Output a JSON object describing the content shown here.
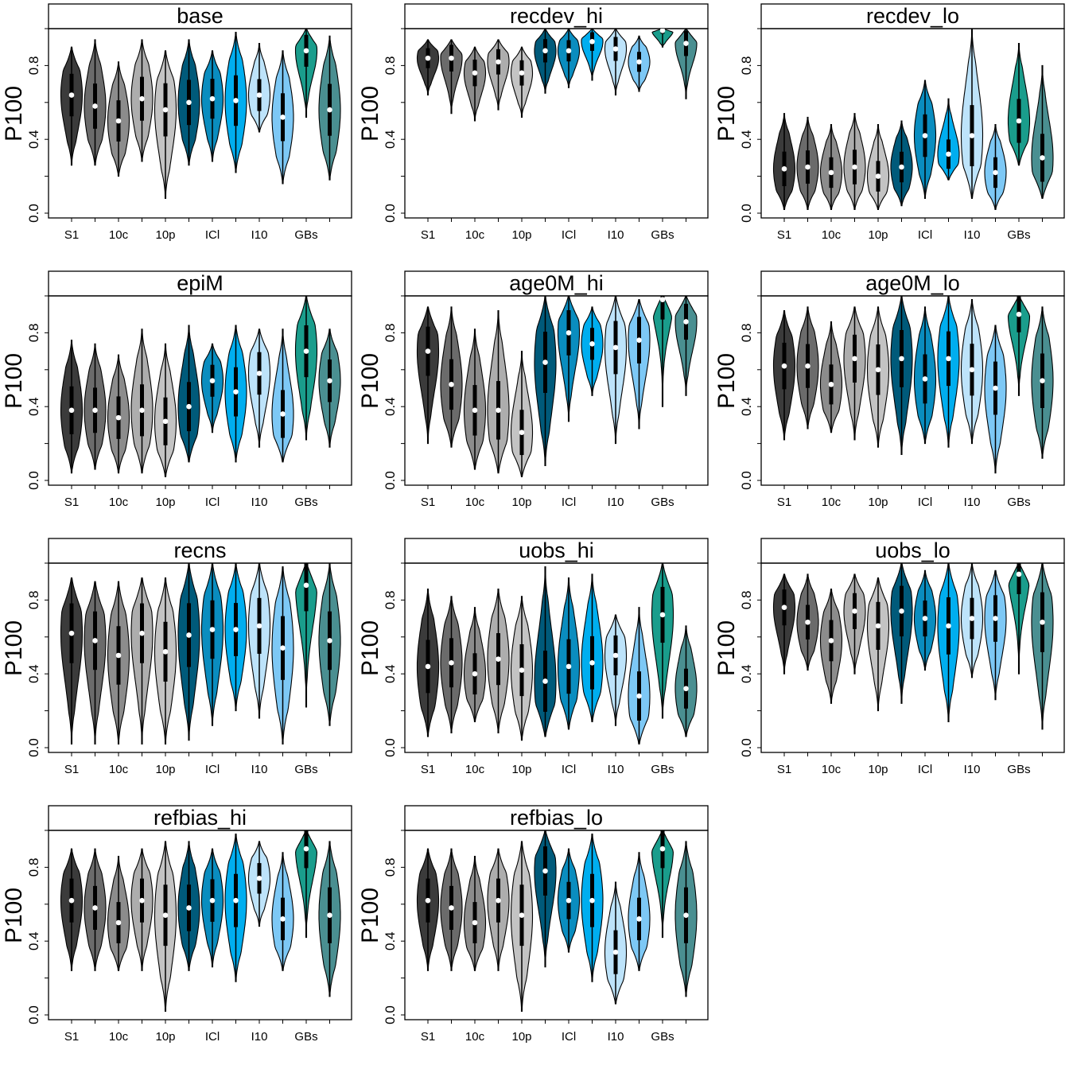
{
  "chart_data": {
    "type": "violin",
    "ylabel": "P100",
    "ylim": [
      0,
      1
    ],
    "yticks": [
      "0.0",
      "0.4",
      "0.8"
    ],
    "x_tick_labels": [
      "S1",
      "10c",
      "10p",
      "ICl",
      "I10",
      "GBs"
    ],
    "groups": [
      {
        "color": "#3b3b3b"
      },
      {
        "color": "#6b6b6b"
      },
      {
        "color": "#8c8c8c"
      },
      {
        "color": "#adadad"
      },
      {
        "color": "#c3c3c3"
      },
      {
        "color": "#005a7a"
      },
      {
        "color": "#0a8dbf"
      },
      {
        "color": "#00aeef"
      },
      {
        "color": "#bde3fa"
      },
      {
        "color": "#7dc8f5"
      },
      {
        "color": "#1a9d8c"
      },
      {
        "color": "#4a8f91"
      }
    ],
    "panels": [
      {
        "title": "base",
        "min": [
          0.26,
          0.26,
          0.2,
          0.28,
          0.08,
          0.26,
          0.28,
          0.22,
          0.44,
          0.16,
          0.52,
          0.18
        ],
        "max": [
          0.9,
          0.94,
          0.82,
          0.94,
          0.88,
          0.94,
          0.88,
          0.98,
          0.92,
          0.88,
          1.0,
          0.96
        ],
        "median": [
          0.64,
          0.58,
          0.5,
          0.62,
          0.56,
          0.6,
          0.62,
          0.61,
          0.64,
          0.52,
          0.88,
          0.56
        ]
      },
      {
        "title": "recdev_hi",
        "min": [
          0.64,
          0.54,
          0.5,
          0.56,
          0.52,
          0.65,
          0.68,
          0.72,
          0.64,
          0.66,
          0.9,
          0.62
        ],
        "max": [
          0.94,
          0.94,
          0.9,
          0.94,
          0.9,
          1.0,
          1.0,
          1.0,
          1.0,
          0.96,
          1.0,
          1.0
        ],
        "median": [
          0.84,
          0.84,
          0.76,
          0.82,
          0.76,
          0.88,
          0.88,
          0.93,
          0.89,
          0.82,
          0.99,
          0.92
        ]
      },
      {
        "title": "recdev_lo",
        "min": [
          0.02,
          0.02,
          0.02,
          0.02,
          0.02,
          0.04,
          0.08,
          0.18,
          0.08,
          0.02,
          0.26,
          0.08
        ],
        "max": [
          0.54,
          0.52,
          0.48,
          0.54,
          0.48,
          0.5,
          0.72,
          0.62,
          1.0,
          0.48,
          0.92,
          0.8
        ],
        "median": [
          0.24,
          0.25,
          0.22,
          0.25,
          0.2,
          0.25,
          0.42,
          0.32,
          0.42,
          0.22,
          0.5,
          0.3
        ]
      },
      {
        "title": "epiM",
        "min": [
          0.04,
          0.06,
          0.04,
          0.04,
          0.02,
          0.1,
          0.26,
          0.1,
          0.18,
          0.1,
          0.22,
          0.18
        ],
        "max": [
          0.76,
          0.74,
          0.68,
          0.82,
          0.74,
          0.84,
          0.74,
          0.84,
          0.82,
          0.82,
          1.0,
          0.82
        ],
        "median": [
          0.38,
          0.38,
          0.34,
          0.38,
          0.32,
          0.4,
          0.54,
          0.48,
          0.58,
          0.36,
          0.7,
          0.54
        ]
      },
      {
        "title": "age0M_hi",
        "min": [
          0.2,
          0.18,
          0.06,
          0.04,
          0.02,
          0.08,
          0.32,
          0.46,
          0.2,
          0.28,
          0.4,
          0.46
        ],
        "max": [
          0.94,
          0.94,
          0.82,
          0.92,
          0.7,
          1.0,
          1.0,
          0.94,
          1.0,
          0.98,
          1.0,
          1.0
        ],
        "median": [
          0.7,
          0.52,
          0.38,
          0.38,
          0.26,
          0.64,
          0.8,
          0.74,
          0.72,
          0.76,
          0.98,
          0.86
        ]
      },
      {
        "title": "age0M_lo",
        "min": [
          0.22,
          0.28,
          0.26,
          0.22,
          0.18,
          0.14,
          0.2,
          0.18,
          0.2,
          0.04,
          0.46,
          0.12
        ],
        "max": [
          0.92,
          0.94,
          0.86,
          0.94,
          0.94,
          1.0,
          0.94,
          1.0,
          0.98,
          0.84,
          1.0,
          0.94
        ],
        "median": [
          0.62,
          0.62,
          0.52,
          0.66,
          0.6,
          0.66,
          0.55,
          0.66,
          0.6,
          0.5,
          0.9,
          0.54
        ]
      },
      {
        "title": "recns",
        "min": [
          0.02,
          0.02,
          0.02,
          0.02,
          0.02,
          0.04,
          0.12,
          0.2,
          0.16,
          0.02,
          0.22,
          0.12
        ],
        "max": [
          0.92,
          0.9,
          0.9,
          0.92,
          0.92,
          1.0,
          1.0,
          1.0,
          1.0,
          0.98,
          1.0,
          1.0
        ],
        "median": [
          0.62,
          0.58,
          0.5,
          0.62,
          0.52,
          0.61,
          0.64,
          0.64,
          0.66,
          0.54,
          0.88,
          0.58
        ]
      },
      {
        "title": "uobs_hi",
        "min": [
          0.06,
          0.08,
          0.14,
          0.08,
          0.04,
          0.06,
          0.1,
          0.14,
          0.12,
          0.02,
          0.16,
          0.06
        ],
        "max": [
          0.86,
          0.82,
          0.76,
          0.86,
          0.82,
          0.98,
          0.92,
          0.94,
          0.72,
          0.76,
          1.0,
          0.66
        ],
        "median": [
          0.44,
          0.46,
          0.4,
          0.48,
          0.42,
          0.36,
          0.44,
          0.46,
          0.5,
          0.28,
          0.72,
          0.32
        ]
      },
      {
        "title": "uobs_lo",
        "min": [
          0.4,
          0.42,
          0.24,
          0.4,
          0.2,
          0.24,
          0.42,
          0.14,
          0.38,
          0.26,
          0.4,
          0.1
        ],
        "max": [
          0.94,
          0.94,
          0.86,
          0.94,
          0.92,
          1.0,
          0.96,
          1.0,
          1.0,
          0.96,
          1.0,
          1.0
        ],
        "median": [
          0.76,
          0.68,
          0.58,
          0.74,
          0.66,
          0.74,
          0.7,
          0.66,
          0.7,
          0.7,
          0.94,
          0.68
        ]
      },
      {
        "title": "refbias_hi",
        "min": [
          0.24,
          0.24,
          0.24,
          0.24,
          0.02,
          0.24,
          0.26,
          0.18,
          0.48,
          0.24,
          0.42,
          0.1
        ],
        "max": [
          0.9,
          0.9,
          0.86,
          0.9,
          0.94,
          0.94,
          0.9,
          0.98,
          0.94,
          0.88,
          1.0,
          0.94
        ],
        "median": [
          0.62,
          0.58,
          0.5,
          0.62,
          0.54,
          0.58,
          0.62,
          0.62,
          0.74,
          0.52,
          0.9,
          0.54
        ]
      },
      {
        "title": "refbias_lo",
        "min": [
          0.24,
          0.24,
          0.24,
          0.24,
          0.02,
          0.26,
          0.34,
          0.18,
          0.06,
          0.24,
          0.42,
          0.1
        ],
        "max": [
          0.9,
          0.9,
          0.86,
          0.9,
          0.94,
          1.0,
          0.9,
          0.98,
          0.72,
          0.88,
          1.0,
          0.94
        ],
        "median": [
          0.62,
          0.58,
          0.5,
          0.62,
          0.54,
          0.78,
          0.62,
          0.62,
          0.34,
          0.52,
          0.9,
          0.54
        ]
      }
    ]
  }
}
